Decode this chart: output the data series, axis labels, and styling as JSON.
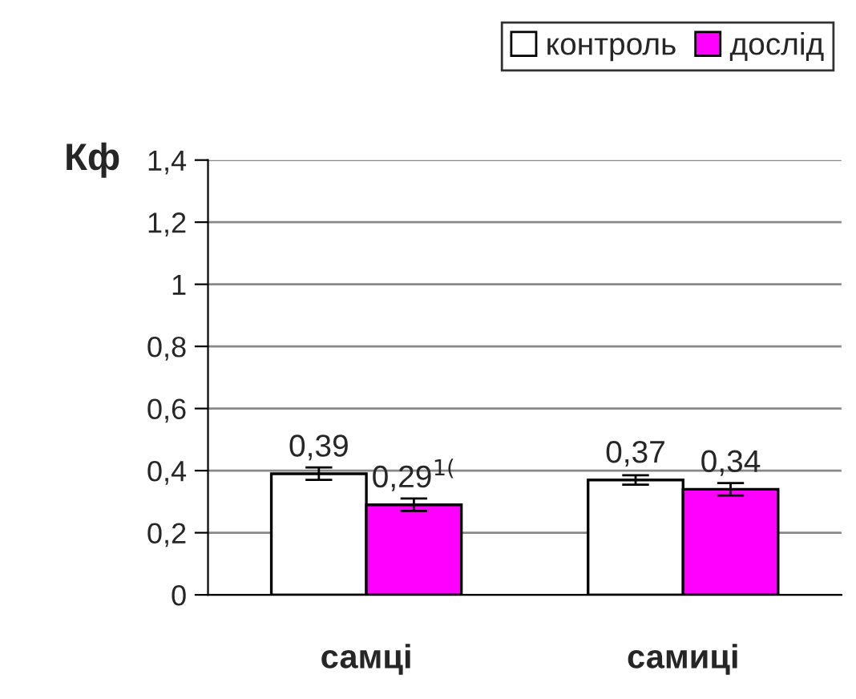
{
  "chart_data": {
    "type": "bar",
    "ylabel": "Кф",
    "categories": [
      "самці",
      "самиці"
    ],
    "series": [
      {
        "name": "контроль",
        "color": "#ffffff",
        "values": [
          0.39,
          0.37
        ],
        "errors": [
          0.02,
          0.015
        ],
        "value_labels": [
          "0,39",
          "0,37"
        ]
      },
      {
        "name": "дослід",
        "color": "#ff00ff",
        "values": [
          0.29,
          0.34
        ],
        "errors": [
          0.02,
          0.02
        ],
        "value_labels": [
          "0,29$^{1(}$",
          "0,34"
        ]
      }
    ],
    "ylim": [
      0,
      1.4
    ],
    "yticks": [
      {
        "value": 0,
        "label": "0"
      },
      {
        "value": 0.2,
        "label": "0,2"
      },
      {
        "value": 0.4,
        "label": "0,4"
      },
      {
        "value": 0.6,
        "label": "0,6"
      },
      {
        "value": 0.8,
        "label": "0,8"
      },
      {
        "value": 1,
        "label": "1"
      },
      {
        "value": 1.2,
        "label": "1,2"
      },
      {
        "value": 1.4,
        "label": "1,4"
      }
    ],
    "grid": "y",
    "legend": "top"
  }
}
